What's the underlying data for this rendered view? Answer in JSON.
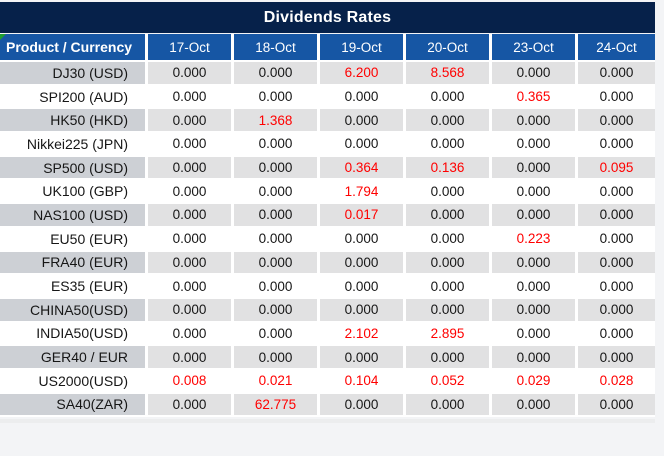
{
  "title": "Dividends Rates",
  "table": {
    "product_header": "Product / Currency",
    "date_columns": [
      "17-Oct",
      "18-Oct",
      "19-Oct",
      "20-Oct",
      "23-Oct",
      "24-Oct"
    ],
    "rows": [
      {
        "product": "DJ30 (USD)",
        "values": [
          "0.000",
          "0.000",
          "6.200",
          "8.568",
          "0.000",
          "0.000"
        ],
        "red": [
          2,
          3
        ]
      },
      {
        "product": "SPI200 (AUD)",
        "values": [
          "0.000",
          "0.000",
          "0.000",
          "0.000",
          "0.365",
          "0.000"
        ],
        "red": [
          4
        ]
      },
      {
        "product": "HK50 (HKD)",
        "values": [
          "0.000",
          "1.368",
          "0.000",
          "0.000",
          "0.000",
          "0.000"
        ],
        "red": [
          1
        ]
      },
      {
        "product": "Nikkei225 (JPN)",
        "values": [
          "0.000",
          "0.000",
          "0.000",
          "0.000",
          "0.000",
          "0.000"
        ],
        "red": []
      },
      {
        "product": "SP500 (USD)",
        "values": [
          "0.000",
          "0.000",
          "0.364",
          "0.136",
          "0.000",
          "0.095"
        ],
        "red": [
          2,
          3,
          5
        ]
      },
      {
        "product": "UK100 (GBP)",
        "values": [
          "0.000",
          "0.000",
          "1.794",
          "0.000",
          "0.000",
          "0.000"
        ],
        "red": [
          2
        ]
      },
      {
        "product": "NAS100 (USD)",
        "values": [
          "0.000",
          "0.000",
          "0.017",
          "0.000",
          "0.000",
          "0.000"
        ],
        "red": [
          2
        ]
      },
      {
        "product": "EU50 (EUR)",
        "values": [
          "0.000",
          "0.000",
          "0.000",
          "0.000",
          "0.223",
          "0.000"
        ],
        "red": [
          4
        ]
      },
      {
        "product": "FRA40 (EUR)",
        "values": [
          "0.000",
          "0.000",
          "0.000",
          "0.000",
          "0.000",
          "0.000"
        ],
        "red": []
      },
      {
        "product": "ES35 (EUR)",
        "values": [
          "0.000",
          "0.000",
          "0.000",
          "0.000",
          "0.000",
          "0.000"
        ],
        "red": []
      },
      {
        "product": "CHINA50(USD)",
        "values": [
          "0.000",
          "0.000",
          "0.000",
          "0.000",
          "0.000",
          "0.000"
        ],
        "red": []
      },
      {
        "product": "INDIA50(USD)",
        "values": [
          "0.000",
          "0.000",
          "2.102",
          "2.895",
          "0.000",
          "0.000"
        ],
        "red": [
          2,
          3
        ]
      },
      {
        "product": "GER40 / EUR",
        "values": [
          "0.000",
          "0.000",
          "0.000",
          "0.000",
          "0.000",
          "0.000"
        ],
        "red": []
      },
      {
        "product": "US2000(USD)",
        "values": [
          "0.008",
          "0.021",
          "0.104",
          "0.052",
          "0.029",
          "0.028"
        ],
        "red": [
          0,
          1,
          2,
          3,
          4,
          5
        ]
      },
      {
        "product": "SA40(ZAR)",
        "values": [
          "0.000",
          "62.775",
          "0.000",
          "0.000",
          "0.000",
          "0.000"
        ],
        "red": [
          1
        ]
      }
    ]
  },
  "icons": {
    "corner_marker": "excel-green-triangle"
  },
  "colors": {
    "title_bg": "#06214A",
    "header_bg": "#1656A4",
    "alt_row_product_bg": "#CDD0D5",
    "alt_row_value_bg": "#E1E1E2",
    "negative_value": "#FF0000",
    "text": "#161616",
    "corner_marker_green": "#1E9E2E"
  }
}
